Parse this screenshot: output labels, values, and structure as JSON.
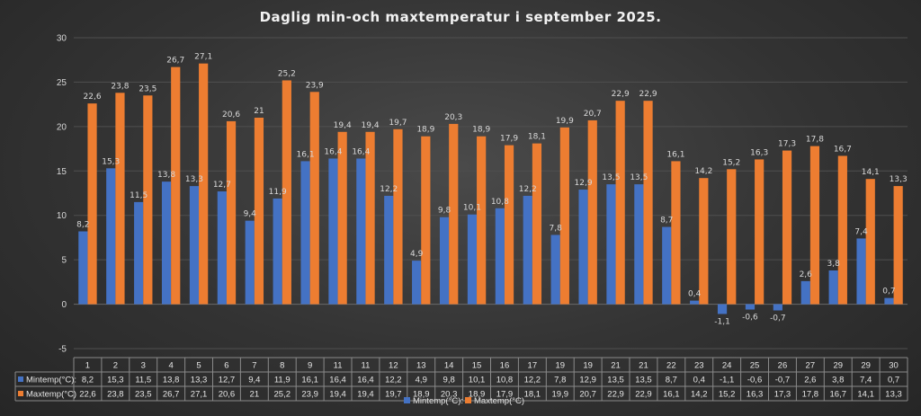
{
  "chart_data": {
    "type": "bar",
    "title": "Daglig min-och maxtemperatur i september 2025.",
    "categories": [
      "1",
      "2",
      "3",
      "4",
      "5",
      "6",
      "7",
      "8",
      "9",
      "11",
      "11",
      "12",
      "13",
      "14",
      "15",
      "16",
      "17",
      "19",
      "19",
      "21",
      "21",
      "22",
      "23",
      "24",
      "25",
      "26",
      "27",
      "29",
      "29",
      "30"
    ],
    "series": [
      {
        "name": "Mintemp(°C):",
        "table_name": "Mintemp(°C):",
        "color": "#4472c4",
        "values": [
          8.2,
          15.3,
          11.5,
          13.8,
          13.3,
          12.7,
          9.4,
          11.9,
          16.1,
          16.4,
          16.4,
          12.2,
          4.9,
          9.8,
          10.1,
          10.8,
          12.2,
          7.8,
          12.9,
          13.5,
          13.5,
          8.7,
          0.4,
          -1.1,
          -0.6,
          -0.7,
          2.6,
          3.8,
          7.4,
          0.7
        ],
        "labels": [
          "8,2",
          "15,3",
          "11,5",
          "13,8",
          "13,3",
          "12,7",
          "9,4",
          "11,9",
          "16,1",
          "16,4",
          "16,4",
          "12,2",
          "4,9",
          "9,8",
          "10,1",
          "10,8",
          "12,2",
          "7,8",
          "12,9",
          "13,5",
          "13,5",
          "8,7",
          "0,4",
          "-1,1",
          "-0,6",
          "-0,7",
          "2,6",
          "3,8",
          "7,4",
          "0,7"
        ]
      },
      {
        "name": "Maxtemp(°C)",
        "table_name": "Maxtemp(°C)",
        "color": "#ed7d31",
        "values": [
          22.6,
          23.8,
          23.5,
          26.7,
          27.1,
          20.6,
          21,
          25.2,
          23.9,
          19.4,
          19.4,
          19.7,
          18.9,
          20.3,
          18.9,
          17.9,
          18.1,
          19.9,
          20.7,
          22.9,
          22.9,
          16.1,
          14.2,
          15.2,
          16.3,
          17.3,
          17.8,
          16.7,
          14.1,
          13.3
        ],
        "labels": [
          "22,6",
          "23,8",
          "23,5",
          "26,7",
          "27,1",
          "20,6",
          "21",
          "25,2",
          "23,9",
          "19,4",
          "19,4",
          "19,7",
          "18,9",
          "20,3",
          "18,9",
          "17,9",
          "18,1",
          "19,9",
          "20,7",
          "22,9",
          "22,9",
          "16,1",
          "14,2",
          "15,2",
          "16,3",
          "17,3",
          "17,8",
          "16,7",
          "14,1",
          "13,3"
        ]
      }
    ],
    "y_ticks": [
      "-5",
      "0",
      "5",
      "10",
      "15",
      "20",
      "25",
      "30"
    ],
    "ylim": [
      -5,
      30
    ],
    "grid": true,
    "legend": "bottom",
    "data_table": true
  }
}
